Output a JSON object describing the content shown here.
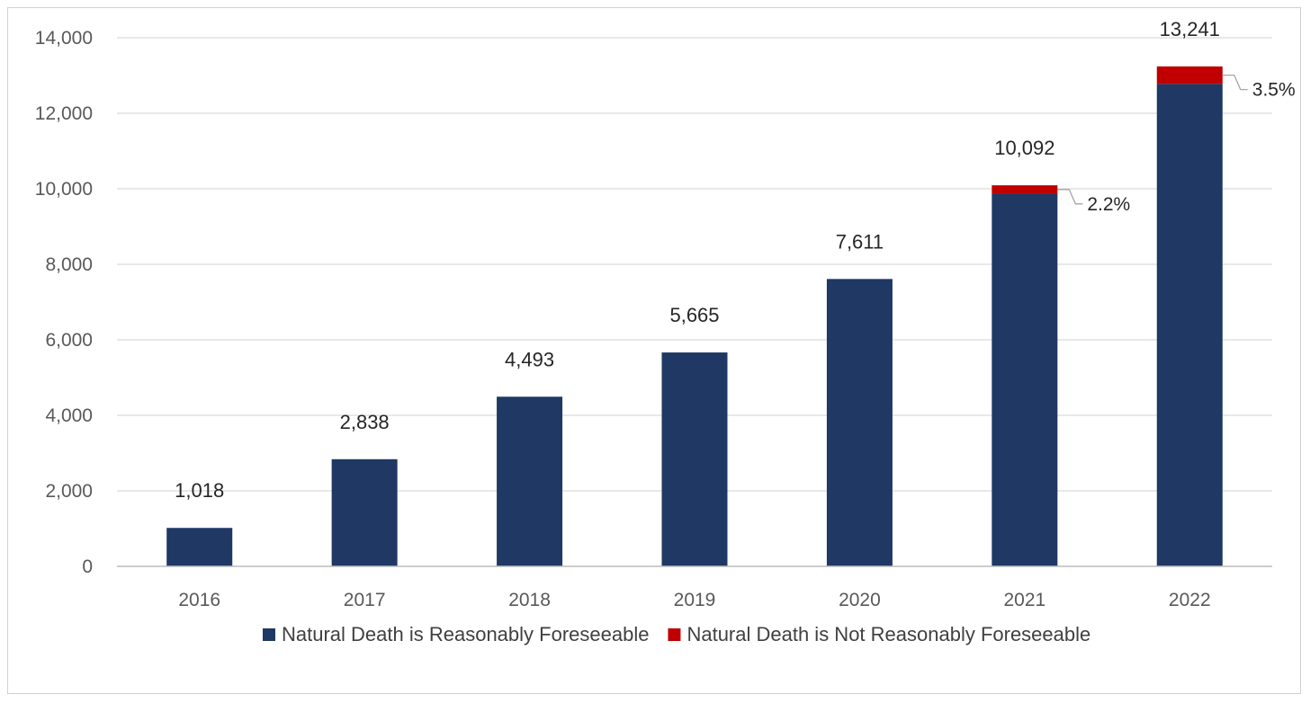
{
  "chart_data": {
    "type": "bar",
    "stacked": true,
    "categories": [
      "2016",
      "2017",
      "2018",
      "2019",
      "2020",
      "2021",
      "2022"
    ],
    "series": [
      {
        "name": "Natural Death is Reasonably Foreseeable",
        "color": "#1f3864",
        "values": [
          1018,
          2838,
          4493,
          5665,
          7611,
          9870,
          12778
        ]
      },
      {
        "name": "Natural Death is Not Reasonably Foreseeable",
        "color": "#c00000",
        "values": [
          0,
          0,
          0,
          0,
          0,
          222,
          463
        ]
      }
    ],
    "total_labels": [
      "1,018",
      "2,838",
      "4,493",
      "5,665",
      "7,611",
      "10,092",
      "13,241"
    ],
    "share_labels": [
      null,
      null,
      null,
      null,
      null,
      "2.2%",
      "3.5%"
    ],
    "y_ticks": [
      0,
      2000,
      4000,
      6000,
      8000,
      10000,
      12000,
      14000
    ],
    "y_tick_labels": [
      "0",
      "2,000",
      "4,000",
      "6,000",
      "8,000",
      "10,000",
      "12,000",
      "14,000"
    ],
    "ylim": [
      0,
      14000
    ],
    "grid": true,
    "legend_position": "bottom",
    "title": "",
    "xlabel": "",
    "ylabel": ""
  }
}
